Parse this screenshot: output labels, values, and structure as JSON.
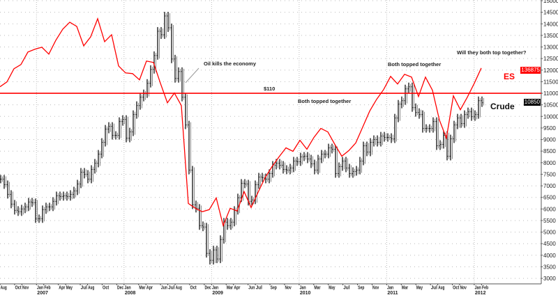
{
  "chart_data": {
    "type": "bar",
    "title": "",
    "ylabel": "",
    "xlabel": "",
    "ylim": [
      3000,
      15000
    ],
    "ytick_step": 500,
    "grid": true,
    "x_start": "2006-08",
    "x_end": "2012-02",
    "series": [
      {
        "name": "Crude",
        "kind": "ohlc-bars",
        "color": "#111111",
        "sample_interval_weeks": 2,
        "values": [
          7290,
          7050,
          6630,
          6210,
          5940,
          5880,
          6000,
          6090,
          6300,
          6270,
          5580,
          5580,
          5970,
          6090,
          6090,
          6330,
          6570,
          6540,
          6570,
          6540,
          6630,
          6780,
          7080,
          7590,
          7500,
          7290,
          7710,
          7980,
          8370,
          8880,
          9450,
          9570,
          9180,
          9180,
          9780,
          9870,
          9060,
          9330,
          10080,
          10470,
          10830,
          10980,
          11430,
          12030,
          12630,
          13680,
          13530,
          14340,
          13830,
          12480,
          11640,
          11940,
          10830,
          9630,
          7680,
          6180,
          6030,
          5280,
          5220,
          4080,
          3780,
          4230,
          3840,
          4680,
          5430,
          5280,
          5430,
          5940,
          6480,
          7110,
          7080,
          6330,
          6390,
          7050,
          7380,
          7350,
          7290,
          7530,
          7890,
          7980,
          7890,
          7710,
          7680,
          7770,
          8070,
          8040,
          8250,
          8280,
          8160,
          7950,
          7680,
          8160,
          8370,
          8370,
          8640,
          8580,
          7530,
          7830,
          8070,
          7770,
          7530,
          7620,
          7680,
          8070,
          8730,
          8460,
          8880,
          9000,
          8880,
          9150,
          9090,
          9090,
          9030,
          9930,
          10530,
          10680,
          11190,
          11280,
          10380,
          10170,
          10080,
          9480,
          9480,
          9480,
          9780,
          8730,
          8790,
          9180,
          8280,
          9030,
          9630,
          9930,
          9690,
          10080,
          10200,
          9990,
          10080,
          10680,
          10590
        ]
      },
      {
        "name": "ES",
        "kind": "line",
        "color": "#ff0000",
        "sample_interval_weeks": 4,
        "values": [
          11280,
          11490,
          12060,
          12240,
          12780,
          12900,
          12990,
          12690,
          13290,
          13770,
          14070,
          13890,
          13050,
          13440,
          14220,
          13230,
          13530,
          12180,
          11880,
          11850,
          11580,
          12390,
          12330,
          11430,
          10590,
          11010,
          10470,
          6240,
          6030,
          5880,
          5970,
          6480,
          5280,
          6030,
          5910,
          6750,
          6060,
          6720,
          7350,
          7830,
          8250,
          8640,
          8490,
          8970,
          8580,
          9090,
          9480,
          9330,
          8790,
          8280,
          8520,
          8850,
          9540,
          10230,
          10740,
          11160,
          11730,
          11400,
          11820,
          11700,
          10860,
          11700,
          11130,
          9840,
          9060,
          10890,
          10290,
          10830,
          11430,
          12090
        ]
      }
    ],
    "hline": {
      "value": 11000,
      "label": "$110",
      "color": "#ff0000"
    },
    "series_labels": {
      "es": "ES",
      "crude": "Crude"
    },
    "price_tags": {
      "es": "136875",
      "crude": "10850"
    },
    "annotations": {
      "oil": "Oil kills the economy",
      "both1": "Both topped together",
      "both2": "Both topped together",
      "will": "Will they both top together?"
    },
    "x_ticks": [
      {
        "label": "Aug",
        "date": "2006-08"
      },
      {
        "label": "Oct",
        "date": "2006-10"
      },
      {
        "label": "Nov",
        "date": "2006-11"
      },
      {
        "label": "Jan",
        "date": "2007-01",
        "year": "2007"
      },
      {
        "label": "Feb",
        "date": "2007-02"
      },
      {
        "label": "Apr",
        "date": "2007-04"
      },
      {
        "label": "May",
        "date": "2007-05"
      },
      {
        "label": "Jul",
        "date": "2007-07"
      },
      {
        "label": "Aug",
        "date": "2007-08"
      },
      {
        "label": "Oct",
        "date": "2007-10"
      },
      {
        "label": "Dec",
        "date": "2007-12"
      },
      {
        "label": "Jan",
        "date": "2008-01",
        "year": "2008"
      },
      {
        "label": "Mar",
        "date": "2008-03"
      },
      {
        "label": "Apr",
        "date": "2008-04"
      },
      {
        "label": "Jun",
        "date": "2008-06"
      },
      {
        "label": "Jul",
        "date": "2008-07"
      },
      {
        "label": "Aug",
        "date": "2008-08"
      },
      {
        "label": "Oct",
        "date": "2008-10"
      },
      {
        "label": "Dec",
        "date": "2008-12"
      },
      {
        "label": "Jan",
        "date": "2009-01",
        "year": "2009"
      },
      {
        "label": "Mar",
        "date": "2009-03"
      },
      {
        "label": "Apr",
        "date": "2009-04"
      },
      {
        "label": "Jun",
        "date": "2009-06"
      },
      {
        "label": "Jul",
        "date": "2009-07"
      },
      {
        "label": "Sep",
        "date": "2009-09"
      },
      {
        "label": "Nov",
        "date": "2009-11"
      },
      {
        "label": "Jan",
        "date": "2010-01",
        "year": "2010"
      },
      {
        "label": "Mar",
        "date": "2010-03"
      },
      {
        "label": "May",
        "date": "2010-05"
      },
      {
        "label": "Jul",
        "date": "2010-07"
      },
      {
        "label": "Sep",
        "date": "2010-09"
      },
      {
        "label": "Nov",
        "date": "2010-11"
      },
      {
        "label": "Jan",
        "date": "2011-01",
        "year": "2011"
      },
      {
        "label": "Mar",
        "date": "2011-03"
      },
      {
        "label": "May",
        "date": "2011-05"
      },
      {
        "label": "Jul",
        "date": "2011-07"
      },
      {
        "label": "Aug",
        "date": "2011-08"
      },
      {
        "label": "Oct",
        "date": "2011-10"
      },
      {
        "label": "Nov",
        "date": "2011-11"
      },
      {
        "label": "Jan",
        "date": "2012-01",
        "year": "2012"
      },
      {
        "label": "Feb",
        "date": "2012-02"
      }
    ]
  }
}
